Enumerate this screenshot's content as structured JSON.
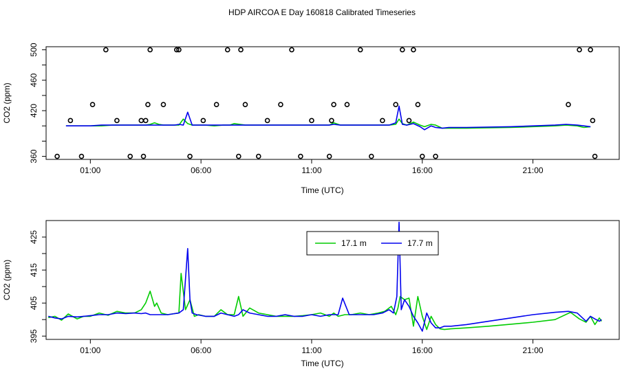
{
  "title": "HDP AIRCOA E  Day 160818  Calibrated Timeseries",
  "colors": {
    "series_a": "#00cc00",
    "series_b": "#0000ee",
    "axis": "#000000",
    "markers": "#000000"
  },
  "chart_data": [
    {
      "type": "line",
      "ylabel": "CO2 (ppm)",
      "xlabel": "Time (UTC)",
      "xlim": [
        -1.0,
        24.9
      ],
      "ylim": [
        356,
        504
      ],
      "xticks": [
        1,
        6,
        11,
        16,
        21
      ],
      "xtick_labels": [
        "01:00",
        "06:00",
        "11:00",
        "16:00",
        "21:00"
      ],
      "yticks": [
        360,
        380,
        400,
        420,
        440,
        460,
        480,
        500
      ],
      "ytick_labels": [
        "360",
        "",
        "",
        "420",
        "",
        "460",
        "",
        "500"
      ],
      "series": [
        {
          "name": "17.1 m",
          "color": "#00cc00",
          "x": [
            -0.1,
            0.5,
            1.0,
            1.5,
            2.0,
            2.5,
            3.0,
            3.5,
            3.7,
            3.9,
            4.1,
            4.3,
            4.6,
            4.8,
            5.0,
            5.2,
            5.4,
            5.6,
            5.8,
            6.2,
            6.6,
            7.0,
            7.3,
            7.5,
            8.0,
            8.5,
            9.0,
            9.5,
            10.0,
            10.5,
            11.0,
            11.5,
            11.8,
            12.0,
            12.3,
            12.6,
            13.0,
            13.5,
            14.0,
            14.5,
            14.8,
            14.95,
            15.1,
            15.3,
            15.6,
            15.9,
            16.1,
            16.4,
            16.6,
            16.9,
            17.2,
            18.0,
            20.0,
            22.0,
            22.5,
            23.0,
            23.3,
            23.6
          ],
          "values": [
            400,
            400,
            400,
            400,
            401,
            401,
            401,
            401,
            402,
            404,
            402,
            401,
            401,
            401,
            401,
            409,
            403,
            401,
            401,
            401,
            400,
            401,
            401,
            403,
            401,
            401,
            401,
            401,
            401,
            401,
            401,
            401,
            401,
            404,
            401,
            401,
            401,
            401,
            401,
            401,
            402,
            409,
            403,
            401,
            405,
            401,
            399,
            402,
            401,
            397,
            397,
            397,
            398,
            400,
            401,
            400,
            398,
            399
          ]
        },
        {
          "name": "17.7 m",
          "color": "#0000ee",
          "x": [
            -0.1,
            0.5,
            1.0,
            1.5,
            2.0,
            2.5,
            3.0,
            3.5,
            3.7,
            3.9,
            4.1,
            4.3,
            4.6,
            4.8,
            5.0,
            5.2,
            5.4,
            5.6,
            5.8,
            6.2,
            6.6,
            7.0,
            7.3,
            7.5,
            8.0,
            8.5,
            9.0,
            9.5,
            10.0,
            10.5,
            11.0,
            11.5,
            11.8,
            12.0,
            12.3,
            12.6,
            13.0,
            13.5,
            14.0,
            14.5,
            14.8,
            14.95,
            15.1,
            15.3,
            15.6,
            15.9,
            16.1,
            16.4,
            16.6,
            16.9,
            17.2,
            18.0,
            20.0,
            22.0,
            22.5,
            23.0,
            23.3,
            23.6
          ],
          "values": [
            400,
            400,
            400,
            401,
            401,
            401,
            401,
            401,
            401,
            401,
            401,
            401,
            401,
            401,
            402,
            401,
            418,
            401,
            401,
            401,
            401,
            401,
            401,
            401,
            401,
            401,
            401,
            401,
            401,
            401,
            401,
            401,
            401,
            402,
            401,
            401,
            401,
            401,
            401,
            401,
            404,
            426,
            402,
            401,
            403,
            399,
            395,
            400,
            398,
            397,
            398,
            398,
            399,
            401,
            402,
            401,
            400,
            399
          ]
        }
      ],
      "markers": {
        "symbol": "circle",
        "x": [
          -0.5,
          0.1,
          0.6,
          1.1,
          1.7,
          2.2,
          2.8,
          3.3,
          3.4,
          3.5,
          3.6,
          3.7,
          4.3,
          4.9,
          5.0,
          5.5,
          6.1,
          6.7,
          7.2,
          7.7,
          7.8,
          8.0,
          8.6,
          9.0,
          9.6,
          10.1,
          10.5,
          11.0,
          11.8,
          11.9,
          12.0,
          12.6,
          13.2,
          13.7,
          14.2,
          14.8,
          15.1,
          15.4,
          15.6,
          15.8,
          16.0,
          16.6,
          22.6,
          23.1,
          23.6,
          23.7,
          23.8
        ],
        "values": [
          360,
          407,
          360,
          428,
          500,
          407,
          360,
          407,
          360,
          407,
          428,
          500,
          428,
          500,
          500,
          360,
          407,
          428,
          500,
          360,
          500,
          428,
          360,
          407,
          428,
          500,
          360,
          407,
          360,
          407,
          428,
          428,
          500,
          360,
          407,
          428,
          500,
          407,
          500,
          428,
          360,
          360,
          428,
          500,
          500,
          407,
          360
        ]
      }
    },
    {
      "type": "line",
      "ylabel": "CO2 (ppm)",
      "xlabel": "Time (UTC)",
      "xlim": [
        -1.0,
        24.9
      ],
      "ylim": [
        394.0,
        430.0
      ],
      "xticks": [
        1,
        6,
        11,
        16,
        21
      ],
      "xtick_labels": [
        "01:00",
        "06:00",
        "11:00",
        "16:00",
        "21:00"
      ],
      "yticks": [
        395,
        400,
        405,
        410,
        415,
        420,
        425
      ],
      "ytick_labels": [
        "395",
        "",
        "405",
        "",
        "415",
        "",
        "425"
      ],
      "legend": {
        "position": "top-center",
        "entries": [
          "17.1 m",
          "17.7 m"
        ]
      },
      "series": [
        {
          "name": "17.1 m",
          "color": "#00cc00",
          "x": [
            -0.9,
            -0.6,
            -0.3,
            0.0,
            0.4,
            0.7,
            1.0,
            1.4,
            1.8,
            2.2,
            2.6,
            3.0,
            3.3,
            3.5,
            3.7,
            3.9,
            4.0,
            4.2,
            4.5,
            4.8,
            5.0,
            5.1,
            5.3,
            5.5,
            5.7,
            5.9,
            6.2,
            6.6,
            6.9,
            7.2,
            7.5,
            7.7,
            7.9,
            8.2,
            8.6,
            9.0,
            9.4,
            9.8,
            10.2,
            10.6,
            11.0,
            11.4,
            11.8,
            12.0,
            12.2,
            12.5,
            12.8,
            13.2,
            13.6,
            14.0,
            14.3,
            14.6,
            14.8,
            14.9,
            15.0,
            15.2,
            15.4,
            15.6,
            15.8,
            16.0,
            16.2,
            16.4,
            16.6,
            16.8,
            17.0,
            17.3,
            18.0,
            19.0,
            20.0,
            21.0,
            22.0,
            22.7,
            23.1,
            23.4,
            23.6,
            23.8,
            24.0,
            24.1
          ],
          "values": [
            400.6,
            401.0,
            399.8,
            401.7,
            400.2,
            401.0,
            401.0,
            402.0,
            401.3,
            402.5,
            402.0,
            402.0,
            403.0,
            405.0,
            408.6,
            404.0,
            405.0,
            402.0,
            401.5,
            401.8,
            402.0,
            414.0,
            403.0,
            406.0,
            401.0,
            401.5,
            401.0,
            401.0,
            403.0,
            401.5,
            401.5,
            407.0,
            401.0,
            403.5,
            402.0,
            401.5,
            401.0,
            401.0,
            401.0,
            401.2,
            401.5,
            402.0,
            401.0,
            402.0,
            401.0,
            401.5,
            401.5,
            402.0,
            401.5,
            402.0,
            402.5,
            404.0,
            401.5,
            403.5,
            407.0,
            406.0,
            406.5,
            398.0,
            407.0,
            401.0,
            397.0,
            401.0,
            398.5,
            397.2,
            397.0,
            397.2,
            397.5,
            398.0,
            398.6,
            399.2,
            400.0,
            402.2,
            400.2,
            399.2,
            401.0,
            398.5,
            400.5,
            399.5
          ]
        },
        {
          "name": "17.7 m",
          "color": "#0000ee",
          "x": [
            -0.9,
            -0.6,
            -0.3,
            0.0,
            0.4,
            0.7,
            1.0,
            1.4,
            1.8,
            2.2,
            2.6,
            3.0,
            3.3,
            3.5,
            3.7,
            3.9,
            4.0,
            4.2,
            4.5,
            4.8,
            5.0,
            5.2,
            5.4,
            5.5,
            5.6,
            5.8,
            6.2,
            6.6,
            6.9,
            7.2,
            7.5,
            7.7,
            7.9,
            8.2,
            8.6,
            9.0,
            9.4,
            9.8,
            10.2,
            10.6,
            11.0,
            11.4,
            11.8,
            12.0,
            12.2,
            12.4,
            12.7,
            13.0,
            13.4,
            13.8,
            14.2,
            14.5,
            14.7,
            14.85,
            14.95,
            15.05,
            15.2,
            15.4,
            15.6,
            15.8,
            16.0,
            16.2,
            16.4,
            16.6,
            16.8,
            17.0,
            17.3,
            18.0,
            19.0,
            20.0,
            21.0,
            22.0,
            22.6,
            23.0,
            23.4,
            23.6,
            23.8,
            24.0,
            24.1
          ],
          "values": [
            401.0,
            400.5,
            400.2,
            401.0,
            400.8,
            401.0,
            401.2,
            401.5,
            401.5,
            402.0,
            401.8,
            402.0,
            401.8,
            402.0,
            401.5,
            401.5,
            401.5,
            401.5,
            401.5,
            401.8,
            402.0,
            403.0,
            421.5,
            406.0,
            402.0,
            401.5,
            401.0,
            401.0,
            402.0,
            401.5,
            401.0,
            401.5,
            403.0,
            402.0,
            401.5,
            401.0,
            401.0,
            401.5,
            401.0,
            401.0,
            401.5,
            401.0,
            401.5,
            401.5,
            401.5,
            406.5,
            401.5,
            401.5,
            401.5,
            401.5,
            402.0,
            403.0,
            402.0,
            407.0,
            429.5,
            403.0,
            406.0,
            404.0,
            401.0,
            399.0,
            396.5,
            402.0,
            399.0,
            397.5,
            397.5,
            398.0,
            398.0,
            398.5,
            399.5,
            400.5,
            401.5,
            402.2,
            402.5,
            402.0,
            399.5,
            401.0,
            400.2,
            399.5,
            400.0
          ]
        }
      ]
    }
  ]
}
